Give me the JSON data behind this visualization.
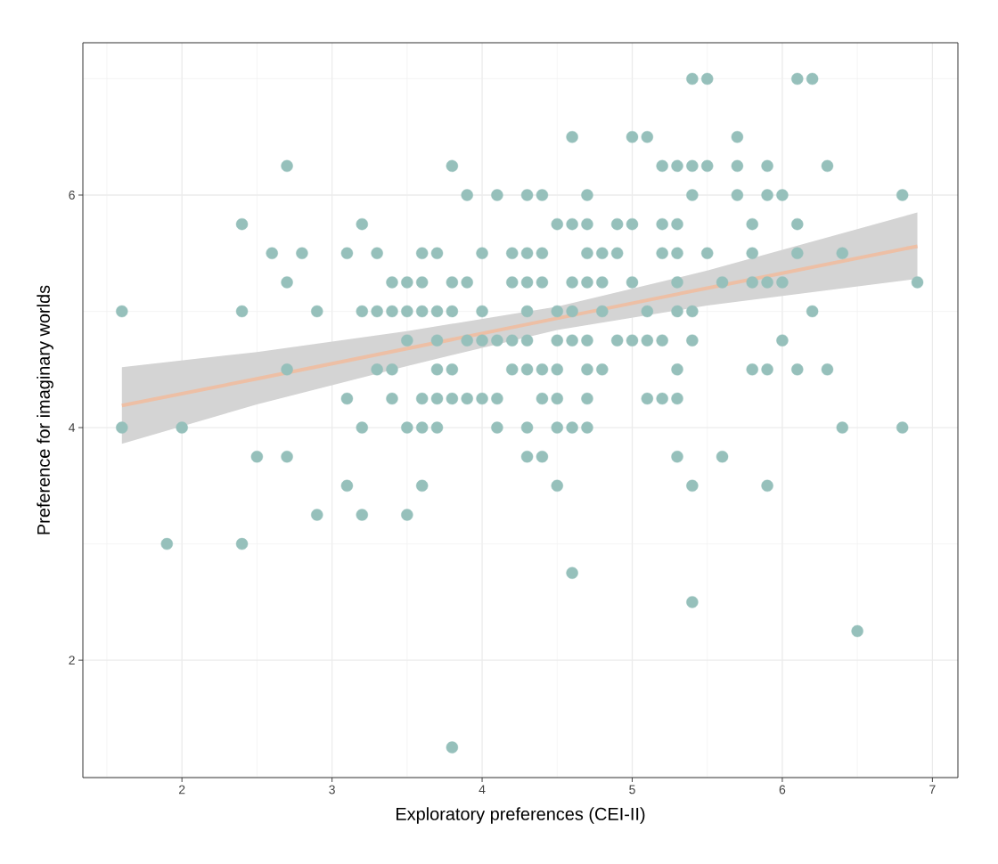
{
  "chart_data": {
    "type": "scatter",
    "xlabel": "Exploratory preferences (CEI-II)",
    "ylabel": "Preference for imaginary worlds",
    "xlim": [
      1.34,
      7.17
    ],
    "ylim": [
      0.99,
      7.31
    ],
    "xticks": [
      2,
      3,
      4,
      5,
      6,
      7
    ],
    "yticks": [
      2,
      4,
      6
    ],
    "grid": true,
    "series": [
      {
        "marker": "circle",
        "color": "#96c0bb",
        "x": [
          5.4,
          5.5,
          6.1,
          6.2,
          4.6,
          5.0,
          5.1,
          5.7,
          2.7,
          3.8,
          5.2,
          5.3,
          5.4,
          5.5,
          5.7,
          5.9,
          6.3,
          3.9,
          4.1,
          4.3,
          4.4,
          4.7,
          5.4,
          5.7,
          5.9,
          6.0,
          6.8,
          2.4,
          3.2,
          4.5,
          4.6,
          4.7,
          4.9,
          5.0,
          5.2,
          5.3,
          5.8,
          6.1,
          2.6,
          2.8,
          3.1,
          3.3,
          3.6,
          3.7,
          4.0,
          4.2,
          4.3,
          4.4,
          4.7,
          4.8,
          4.9,
          5.2,
          5.3,
          5.5,
          5.8,
          6.1,
          6.4,
          2.7,
          3.4,
          3.5,
          3.6,
          3.8,
          3.9,
          4.2,
          4.3,
          4.4,
          4.6,
          4.7,
          4.8,
          5.0,
          5.3,
          5.6,
          5.8,
          5.9,
          6.0,
          6.9,
          1.6,
          2.4,
          2.9,
          3.2,
          3.3,
          3.4,
          3.5,
          3.6,
          3.7,
          3.8,
          4.0,
          4.3,
          4.5,
          4.6,
          4.8,
          5.1,
          5.3,
          5.4,
          6.2,
          3.5,
          3.7,
          3.9,
          4.0,
          4.1,
          4.2,
          4.3,
          4.5,
          4.6,
          4.7,
          4.9,
          5.0,
          5.1,
          5.2,
          5.4,
          6.0,
          2.7,
          3.3,
          3.4,
          3.7,
          3.8,
          4.2,
          4.3,
          4.4,
          4.5,
          4.7,
          4.8,
          5.3,
          5.8,
          5.9,
          6.1,
          6.3,
          3.1,
          3.4,
          3.6,
          3.7,
          3.8,
          3.9,
          4.0,
          4.1,
          4.4,
          4.5,
          4.7,
          5.1,
          5.2,
          5.3,
          1.6,
          2.0,
          3.2,
          3.5,
          3.6,
          3.7,
          4.1,
          4.3,
          4.5,
          4.6,
          4.7,
          6.4,
          6.8,
          2.5,
          2.7,
          4.3,
          4.4,
          5.3,
          5.6,
          3.1,
          3.6,
          4.5,
          5.4,
          5.9,
          2.9,
          3.2,
          3.5,
          1.9,
          2.4,
          4.6,
          5.4,
          6.5,
          3.8
        ],
        "values": [
          7,
          7,
          7,
          7,
          6.5,
          6.5,
          6.5,
          6.5,
          6.25,
          6.25,
          6.25,
          6.25,
          6.25,
          6.25,
          6.25,
          6.25,
          6.25,
          6,
          6,
          6,
          6,
          6,
          6,
          6,
          6,
          6,
          6,
          5.75,
          5.75,
          5.75,
          5.75,
          5.75,
          5.75,
          5.75,
          5.75,
          5.75,
          5.75,
          5.75,
          5.5,
          5.5,
          5.5,
          5.5,
          5.5,
          5.5,
          5.5,
          5.5,
          5.5,
          5.5,
          5.5,
          5.5,
          5.5,
          5.5,
          5.5,
          5.5,
          5.5,
          5.5,
          5.5,
          5.25,
          5.25,
          5.25,
          5.25,
          5.25,
          5.25,
          5.25,
          5.25,
          5.25,
          5.25,
          5.25,
          5.25,
          5.25,
          5.25,
          5.25,
          5.25,
          5.25,
          5.25,
          5.25,
          5,
          5,
          5,
          5,
          5,
          5,
          5,
          5,
          5,
          5,
          5,
          5,
          5,
          5,
          5,
          5,
          5,
          5,
          5,
          4.75,
          4.75,
          4.75,
          4.75,
          4.75,
          4.75,
          4.75,
          4.75,
          4.75,
          4.75,
          4.75,
          4.75,
          4.75,
          4.75,
          4.75,
          4.75,
          4.5,
          4.5,
          4.5,
          4.5,
          4.5,
          4.5,
          4.5,
          4.5,
          4.5,
          4.5,
          4.5,
          4.5,
          4.5,
          4.5,
          4.5,
          4.5,
          4.25,
          4.25,
          4.25,
          4.25,
          4.25,
          4.25,
          4.25,
          4.25,
          4.25,
          4.25,
          4.25,
          4.25,
          4.25,
          4.25,
          4,
          4,
          4,
          4,
          4,
          4,
          4,
          4,
          4,
          4,
          4,
          4,
          4,
          3.75,
          3.75,
          3.75,
          3.75,
          3.75,
          3.75,
          3.5,
          3.5,
          3.5,
          3.5,
          3.5,
          3.25,
          3.25,
          3.25,
          3,
          3,
          2.75,
          2.5,
          2.25,
          1.25
        ]
      },
      {
        "type": "line",
        "marker": "none",
        "color": "#edbfa5",
        "x": [
          1.6,
          2.5,
          3.5,
          4.5,
          5.5,
          6.9
        ],
        "values": [
          4.19,
          4.42,
          4.68,
          4.94,
          5.2,
          5.56
        ],
        "lower": [
          3.86,
          4.2,
          4.53,
          4.84,
          5.05,
          5.28
        ],
        "upper": [
          4.52,
          4.65,
          4.83,
          5.04,
          5.35,
          5.85
        ]
      }
    ]
  }
}
